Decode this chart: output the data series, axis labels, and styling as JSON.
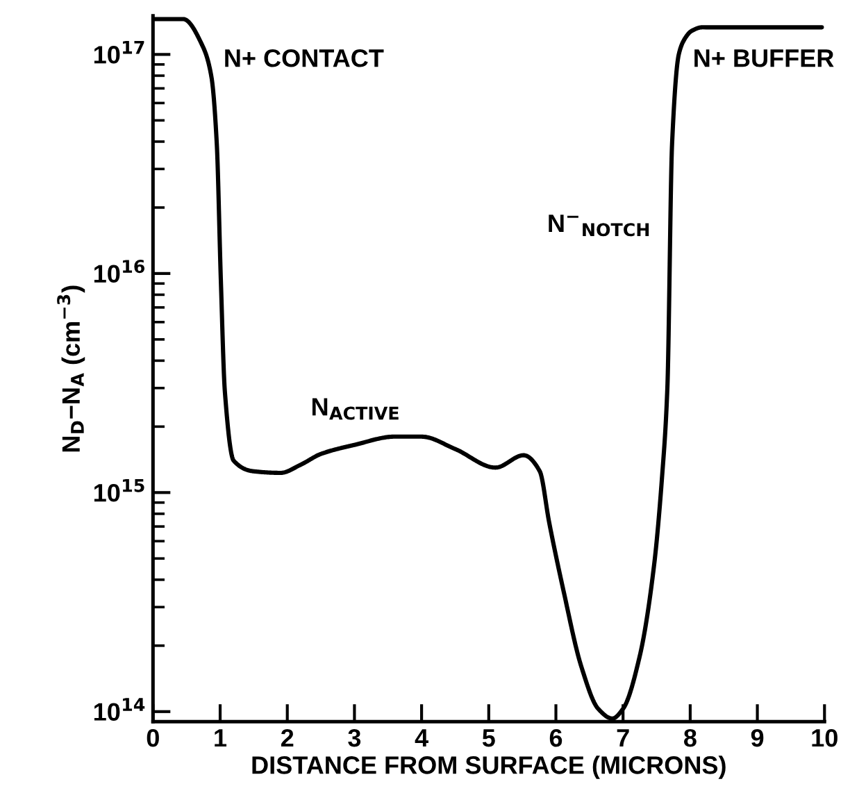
{
  "chart_data": {
    "type": "line",
    "xlabel": "DISTANCE FROM SURFACE (MICRONS)",
    "ylabel": "N$_{D}$−N$_{A}$ (cm$^{−3}$)",
    "x": [
      0,
      0.45,
      0.74,
      0.87,
      0.95,
      1.01,
      1.07,
      1.2,
      1.5,
      1.9,
      2.2,
      2.5,
      3.0,
      3.6,
      4.0,
      4.5,
      5.1,
      5.52,
      5.76,
      5.9,
      6.11,
      6.38,
      6.63,
      6.84,
      7.0,
      7.25,
      7.46,
      7.58,
      7.66,
      7.73,
      7.83,
      7.92,
      8.02,
      8.18,
      9.96
    ],
    "series": [
      {
        "color": "#000000",
        "values": [
          1.45e+17,
          1.45e+17,
          1.09e+17,
          7.9e+16,
          3.9e+16,
          9400000000000000.0,
          2900000000000000.0,
          1400000000000000.0,
          1250000000000000.0,
          1230000000000000.0,
          1340000000000000.0,
          1500000000000000.0,
          1650000000000000.0,
          1800000000000000.0,
          1800000000000000.0,
          1580000000000000.0,
          1300000000000000.0,
          1480000000000000.0,
          1250000000000000.0,
          730000000000000.0,
          360000000000000.0,
          160000000000000.0,
          103000000000000.0,
          93000000000000.0,
          103000000000000.0,
          180000000000000.0,
          460000000000000.0,
          1170000000000000.0,
          3000000000000000.0,
          3.9e+16,
          1e+17,
          1.18e+17,
          1.28e+17,
          1.33e+17,
          1.33e+17
        ]
      }
    ],
    "annotations": [
      "N+ CONTACT",
      "N$_{ACTIVE}$",
      "N$^{−}$$_{NOTCH}$",
      "N+ BUFFER"
    ],
    "log": "y",
    "xlim": [
      0,
      10
    ],
    "xticks": [
      0,
      1,
      2,
      3,
      4,
      5,
      6,
      7,
      8,
      9,
      10
    ],
    "ylim": [
      90000000000000.0,
      1.5e+17
    ],
    "yticks": [
      {
        "value": 100000000000000.0,
        "label": "10$^{14}$"
      },
      {
        "value": 1000000000000000.0,
        "label": "10$^{15}$"
      },
      {
        "value": 1e+16,
        "label": "10$^{16}$"
      },
      {
        "value": 1e+17,
        "label": "10$^{17}$"
      }
    ],
    "marker": "none",
    "line_style": "solid"
  }
}
